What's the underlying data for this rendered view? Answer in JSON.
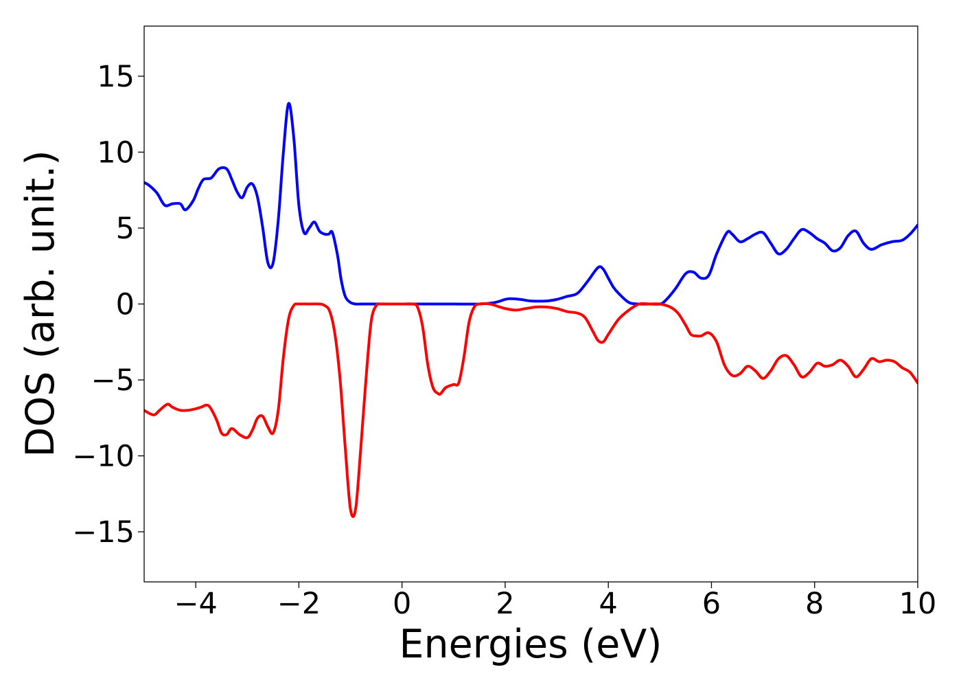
{
  "chart_data": {
    "type": "line",
    "title": "",
    "xlabel": "Energies (eV)",
    "ylabel": "DOS (arb. unit.)",
    "xlim": [
      -5,
      10
    ],
    "ylim": [
      -18.3,
      18.3
    ],
    "grid": false,
    "x_ticks": [
      -4,
      -2,
      0,
      2,
      4,
      6,
      8,
      10
    ],
    "x_tick_labels": [
      "−4",
      "−2",
      "0",
      "2",
      "4",
      "6",
      "8",
      "10"
    ],
    "y_ticks": [
      15,
      10,
      5,
      0,
      -5,
      -10,
      -15
    ],
    "y_tick_labels": [
      "15",
      "10",
      "5",
      "0",
      "−5",
      "−10",
      "−15"
    ],
    "series": [
      {
        "color": "#0000ff",
        "x": [
          -5.0,
          -4.9,
          -4.75,
          -4.6,
          -4.45,
          -4.3,
          -4.2,
          -4.05,
          -3.95,
          -3.85,
          -3.7,
          -3.55,
          -3.4,
          -3.3,
          -3.2,
          -3.1,
          -3.0,
          -2.9,
          -2.8,
          -2.7,
          -2.6,
          -2.5,
          -2.4,
          -2.3,
          -2.2,
          -2.1,
          -2.0,
          -1.9,
          -1.8,
          -1.7,
          -1.6,
          -1.5,
          -1.42,
          -1.35,
          -1.25,
          -1.18,
          -1.1,
          -1.0,
          -0.9,
          -0.8,
          -0.7,
          -0.6,
          -0.5,
          -0.4,
          -0.3,
          -0.2,
          0.0,
          0.5,
          1.0,
          1.5,
          1.8,
          2.0,
          2.1,
          2.3,
          2.5,
          2.8,
          3.0,
          3.2,
          3.4,
          3.6,
          3.8,
          3.9,
          4.0,
          4.1,
          4.2,
          4.4,
          4.6,
          4.8,
          5.0,
          5.1,
          5.3,
          5.5,
          5.65,
          5.8,
          5.95,
          6.1,
          6.3,
          6.4,
          6.55,
          6.7,
          6.85,
          7.0,
          7.15,
          7.3,
          7.45,
          7.6,
          7.75,
          7.9,
          8.05,
          8.2,
          8.35,
          8.5,
          8.65,
          8.8,
          8.95,
          9.1,
          9.3,
          9.5,
          9.7,
          9.85,
          10.0
        ],
        "y": [
          8.0,
          7.8,
          7.3,
          6.5,
          6.6,
          6.6,
          6.2,
          6.8,
          7.6,
          8.2,
          8.3,
          8.9,
          8.9,
          8.2,
          7.4,
          7.0,
          7.7,
          7.9,
          7.0,
          5.0,
          2.7,
          2.7,
          5.5,
          10.0,
          13.2,
          11.0,
          6.5,
          4.7,
          5.0,
          5.4,
          4.8,
          4.6,
          4.6,
          4.7,
          3.2,
          1.6,
          0.5,
          0.1,
          0.0,
          0.0,
          0.0,
          0.0,
          0.0,
          0.0,
          0.0,
          0.0,
          0.0,
          0.0,
          0.0,
          0.0,
          0.1,
          0.3,
          0.35,
          0.3,
          0.2,
          0.2,
          0.3,
          0.5,
          0.7,
          1.5,
          2.4,
          2.3,
          1.7,
          1.1,
          0.7,
          0.1,
          0.0,
          0.0,
          0.0,
          0.2,
          1.0,
          2.0,
          2.1,
          1.7,
          1.9,
          3.3,
          4.7,
          4.6,
          4.1,
          4.3,
          4.6,
          4.7,
          4.0,
          3.3,
          3.6,
          4.3,
          4.9,
          4.7,
          4.3,
          4.0,
          3.5,
          3.7,
          4.5,
          4.8,
          4.0,
          3.6,
          3.9,
          4.1,
          4.2,
          4.6,
          5.2
        ]
      },
      {
        "color": "#ff0000",
        "x": [
          -5.0,
          -4.9,
          -4.8,
          -4.7,
          -4.55,
          -4.45,
          -4.3,
          -4.15,
          -4.0,
          -3.9,
          -3.75,
          -3.6,
          -3.5,
          -3.4,
          -3.3,
          -3.15,
          -3.0,
          -2.9,
          -2.8,
          -2.7,
          -2.6,
          -2.5,
          -2.4,
          -2.3,
          -2.2,
          -2.1,
          -2.0,
          -1.8,
          -1.6,
          -1.5,
          -1.4,
          -1.3,
          -1.2,
          -1.1,
          -1.0,
          -0.9,
          -0.8,
          -0.7,
          -0.6,
          -0.5,
          -0.4,
          -0.3,
          -0.2,
          0.0,
          0.2,
          0.3,
          0.4,
          0.5,
          0.6,
          0.7,
          0.75,
          0.85,
          1.0,
          1.1,
          1.2,
          1.3,
          1.4,
          1.5,
          1.7,
          1.9,
          2.0,
          2.2,
          2.4,
          2.6,
          2.8,
          3.0,
          3.2,
          3.4,
          3.55,
          3.7,
          3.8,
          3.9,
          4.0,
          4.2,
          4.4,
          4.6,
          4.8,
          5.0,
          5.2,
          5.35,
          5.5,
          5.6,
          5.7,
          5.8,
          5.95,
          6.1,
          6.25,
          6.4,
          6.55,
          6.7,
          6.85,
          7.0,
          7.15,
          7.3,
          7.45,
          7.6,
          7.75,
          7.9,
          8.05,
          8.2,
          8.35,
          8.5,
          8.65,
          8.8,
          8.95,
          9.1,
          9.25,
          9.4,
          9.55,
          9.7,
          9.85,
          10.0
        ],
        "y": [
          -7.0,
          -7.2,
          -7.3,
          -7.0,
          -6.6,
          -6.8,
          -7.0,
          -7.0,
          -6.9,
          -6.8,
          -6.7,
          -7.6,
          -8.5,
          -8.6,
          -8.2,
          -8.6,
          -8.8,
          -8.3,
          -7.5,
          -7.4,
          -8.1,
          -8.5,
          -7.0,
          -3.5,
          -1.0,
          -0.1,
          0.0,
          0.0,
          0.0,
          -0.1,
          -0.5,
          -2.0,
          -5.0,
          -9.5,
          -13.5,
          -13.5,
          -9.5,
          -5.0,
          -1.2,
          -0.1,
          0.0,
          0.0,
          0.0,
          0.0,
          0.0,
          -0.2,
          -1.5,
          -4.0,
          -5.5,
          -5.9,
          -5.9,
          -5.5,
          -5.3,
          -5.2,
          -3.5,
          -1.2,
          -0.2,
          0.0,
          0.0,
          -0.2,
          -0.3,
          -0.4,
          -0.3,
          -0.2,
          -0.2,
          -0.3,
          -0.5,
          -0.6,
          -0.9,
          -1.8,
          -2.4,
          -2.5,
          -2.0,
          -1.0,
          -0.4,
          0.0,
          0.0,
          0.0,
          -0.2,
          -0.6,
          -1.4,
          -2.0,
          -2.1,
          -2.1,
          -1.9,
          -2.5,
          -4.0,
          -4.7,
          -4.6,
          -4.1,
          -4.4,
          -4.9,
          -4.4,
          -3.6,
          -3.4,
          -4.0,
          -4.8,
          -4.5,
          -3.9,
          -4.1,
          -4.0,
          -3.7,
          -4.1,
          -4.8,
          -4.3,
          -3.6,
          -3.8,
          -3.7,
          -3.8,
          -4.2,
          -4.5,
          -5.2
        ]
      }
    ]
  }
}
